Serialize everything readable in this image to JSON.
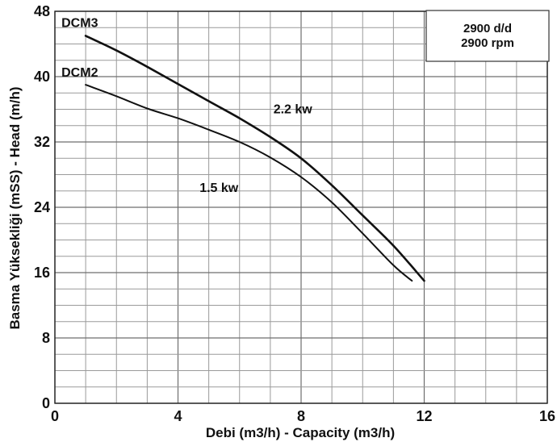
{
  "chart_data": {
    "type": "line",
    "xlabel": "Debi (m3/h) - Capacity (m3/h)",
    "ylabel": "Basma Yüksekliği (mSS) - Head (m/h)",
    "xlim": [
      0,
      16
    ],
    "ylim": [
      0,
      48
    ],
    "x_ticks": [
      0,
      4,
      8,
      12,
      16
    ],
    "y_ticks": [
      0,
      8,
      16,
      24,
      32,
      40,
      48
    ],
    "grid": true,
    "speed_box": {
      "line1": "2900 d/d",
      "line2": "2900 rpm"
    },
    "series": [
      {
        "name": "DCM3",
        "power": "2.2 kw",
        "x": [
          1,
          2,
          3,
          4,
          5,
          6,
          7,
          8,
          9,
          10,
          11,
          12
        ],
        "y": [
          45,
          43.2,
          41.2,
          39.1,
          37,
          34.9,
          32.6,
          30,
          26.7,
          23,
          19.3,
          15
        ]
      },
      {
        "name": "DCM2",
        "power": "1.5 kw",
        "x": [
          1,
          2,
          3,
          4,
          5,
          6,
          7,
          8,
          9,
          10,
          11,
          11.6
        ],
        "y": [
          39,
          37.6,
          36.1,
          34.9,
          33.5,
          32,
          30.1,
          27.7,
          24.6,
          20.8,
          16.9,
          15
        ]
      }
    ]
  }
}
